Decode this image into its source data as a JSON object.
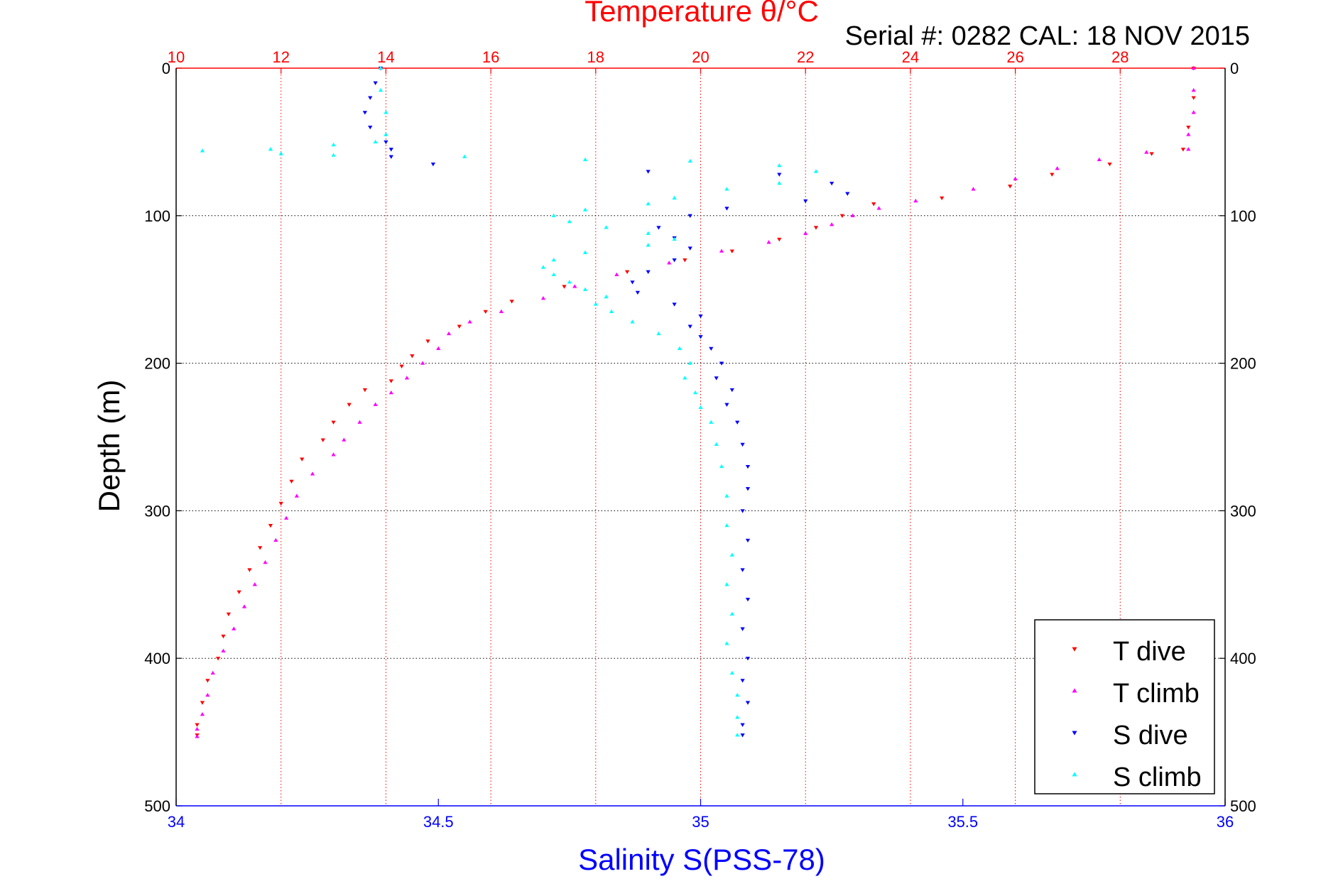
{
  "chart_data": {
    "type": "scatter",
    "title": "Temperature θ/°C",
    "annotation": "Serial #: 0282  CAL: 18 NOV 2015",
    "xlabel": "Salinity S(PSS-78)",
    "ylabel": "Depth (m)",
    "x_temperature_lim": [
      10,
      30
    ],
    "x_salinity_lim": [
      34,
      36
    ],
    "ylim": [
      0,
      500
    ],
    "y_reversed": true,
    "grid": true,
    "legend_placement": "bottom-right",
    "temperature_ticks": [
      "10",
      "12",
      "14",
      "16",
      "18",
      "20",
      "22",
      "24",
      "26",
      "28"
    ],
    "salinity_ticks": [
      "34",
      "34.5",
      "35",
      "35.5",
      "36"
    ],
    "depth_ticks": [
      "0",
      "100",
      "200",
      "300",
      "400",
      "500"
    ],
    "series": [
      {
        "name": "T dive",
        "axis": "temperature",
        "color": "#ff0000",
        "marker": "triangle-down",
        "points": [
          [
            29.4,
            0
          ],
          [
            29.4,
            20
          ],
          [
            29.3,
            40
          ],
          [
            29.2,
            55
          ],
          [
            28.6,
            58
          ],
          [
            27.8,
            65
          ],
          [
            26.7,
            72
          ],
          [
            25.9,
            80
          ],
          [
            24.6,
            88
          ],
          [
            23.3,
            92
          ],
          [
            22.7,
            100
          ],
          [
            22.2,
            108
          ],
          [
            21.5,
            116
          ],
          [
            20.6,
            124
          ],
          [
            19.7,
            130
          ],
          [
            18.6,
            138
          ],
          [
            17.4,
            148
          ],
          [
            16.4,
            158
          ],
          [
            15.9,
            165
          ],
          [
            15.4,
            175
          ],
          [
            14.8,
            185
          ],
          [
            14.5,
            195
          ],
          [
            14.3,
            202
          ],
          [
            14.1,
            212
          ],
          [
            13.6,
            218
          ],
          [
            13.3,
            228
          ],
          [
            13.0,
            240
          ],
          [
            12.8,
            252
          ],
          [
            12.4,
            265
          ],
          [
            12.2,
            280
          ],
          [
            12.0,
            295
          ],
          [
            11.8,
            310
          ],
          [
            11.6,
            325
          ],
          [
            11.4,
            340
          ],
          [
            11.2,
            355
          ],
          [
            11.0,
            370
          ],
          [
            10.9,
            385
          ],
          [
            10.8,
            400
          ],
          [
            10.6,
            415
          ],
          [
            10.5,
            430
          ],
          [
            10.4,
            445
          ],
          [
            10.4,
            452
          ]
        ]
      },
      {
        "name": "T climb",
        "axis": "temperature",
        "color": "#ff00ff",
        "marker": "triangle-up",
        "points": [
          [
            29.4,
            0
          ],
          [
            29.4,
            15
          ],
          [
            29.4,
            30
          ],
          [
            29.3,
            45
          ],
          [
            29.3,
            55
          ],
          [
            28.5,
            57
          ],
          [
            27.6,
            62
          ],
          [
            26.8,
            68
          ],
          [
            26.0,
            75
          ],
          [
            25.2,
            82
          ],
          [
            24.1,
            90
          ],
          [
            23.4,
            95
          ],
          [
            22.9,
            100
          ],
          [
            22.5,
            106
          ],
          [
            22.0,
            112
          ],
          [
            21.3,
            118
          ],
          [
            20.4,
            124
          ],
          [
            19.4,
            132
          ],
          [
            18.4,
            140
          ],
          [
            17.6,
            148
          ],
          [
            17.0,
            156
          ],
          [
            16.2,
            165
          ],
          [
            15.6,
            172
          ],
          [
            15.2,
            180
          ],
          [
            15.0,
            190
          ],
          [
            14.7,
            200
          ],
          [
            14.4,
            210
          ],
          [
            14.1,
            220
          ],
          [
            13.8,
            228
          ],
          [
            13.5,
            240
          ],
          [
            13.2,
            252
          ],
          [
            13.0,
            262
          ],
          [
            12.6,
            275
          ],
          [
            12.3,
            290
          ],
          [
            12.1,
            305
          ],
          [
            11.9,
            320
          ],
          [
            11.7,
            335
          ],
          [
            11.5,
            350
          ],
          [
            11.3,
            365
          ],
          [
            11.1,
            380
          ],
          [
            10.9,
            395
          ],
          [
            10.7,
            410
          ],
          [
            10.6,
            425
          ],
          [
            10.5,
            438
          ],
          [
            10.4,
            448
          ],
          [
            10.4,
            453
          ]
        ]
      },
      {
        "name": "S dive",
        "axis": "salinity",
        "color": "#0000ff",
        "marker": "triangle-down",
        "points": [
          [
            34.39,
            0
          ],
          [
            34.38,
            10
          ],
          [
            34.37,
            20
          ],
          [
            34.36,
            30
          ],
          [
            34.37,
            40
          ],
          [
            34.4,
            50
          ],
          [
            34.41,
            55
          ],
          [
            34.41,
            60
          ],
          [
            34.49,
            65
          ],
          [
            34.9,
            70
          ],
          [
            35.15,
            72
          ],
          [
            35.25,
            78
          ],
          [
            35.28,
            85
          ],
          [
            35.2,
            90
          ],
          [
            35.05,
            95
          ],
          [
            34.98,
            100
          ],
          [
            34.92,
            108
          ],
          [
            34.95,
            115
          ],
          [
            34.98,
            122
          ],
          [
            34.95,
            130
          ],
          [
            34.9,
            138
          ],
          [
            34.87,
            145
          ],
          [
            34.88,
            152
          ],
          [
            34.95,
            160
          ],
          [
            35.0,
            168
          ],
          [
            34.98,
            175
          ],
          [
            35.0,
            182
          ],
          [
            35.02,
            190
          ],
          [
            35.04,
            200
          ],
          [
            35.03,
            210
          ],
          [
            35.06,
            218
          ],
          [
            35.05,
            228
          ],
          [
            35.07,
            240
          ],
          [
            35.08,
            255
          ],
          [
            35.09,
            270
          ],
          [
            35.09,
            285
          ],
          [
            35.08,
            300
          ],
          [
            35.09,
            320
          ],
          [
            35.08,
            340
          ],
          [
            35.09,
            360
          ],
          [
            35.08,
            380
          ],
          [
            35.09,
            400
          ],
          [
            35.08,
            415
          ],
          [
            35.09,
            430
          ],
          [
            35.08,
            445
          ],
          [
            35.08,
            452
          ]
        ]
      },
      {
        "name": "S climb",
        "axis": "salinity",
        "color": "#00ffff",
        "marker": "triangle-up",
        "points": [
          [
            34.39,
            0
          ],
          [
            34.39,
            15
          ],
          [
            34.4,
            30
          ],
          [
            34.4,
            45
          ],
          [
            34.38,
            50
          ],
          [
            34.3,
            52
          ],
          [
            34.18,
            55
          ],
          [
            34.05,
            56
          ],
          [
            34.2,
            58
          ],
          [
            34.3,
            59
          ],
          [
            34.55,
            60
          ],
          [
            34.78,
            62
          ],
          [
            34.98,
            63
          ],
          [
            35.15,
            66
          ],
          [
            35.22,
            70
          ],
          [
            35.15,
            78
          ],
          [
            35.05,
            82
          ],
          [
            34.95,
            88
          ],
          [
            34.9,
            92
          ],
          [
            34.78,
            96
          ],
          [
            34.72,
            100
          ],
          [
            34.75,
            104
          ],
          [
            34.82,
            108
          ],
          [
            34.9,
            112
          ],
          [
            34.95,
            116
          ],
          [
            34.9,
            120
          ],
          [
            34.78,
            125
          ],
          [
            34.72,
            130
          ],
          [
            34.7,
            135
          ],
          [
            34.72,
            140
          ],
          [
            34.75,
            145
          ],
          [
            34.78,
            150
          ],
          [
            34.82,
            155
          ],
          [
            34.8,
            160
          ],
          [
            34.83,
            165
          ],
          [
            34.87,
            172
          ],
          [
            34.92,
            180
          ],
          [
            34.96,
            190
          ],
          [
            34.98,
            200
          ],
          [
            34.97,
            210
          ],
          [
            34.99,
            220
          ],
          [
            35.0,
            230
          ],
          [
            35.02,
            240
          ],
          [
            35.03,
            255
          ],
          [
            35.04,
            270
          ],
          [
            35.05,
            290
          ],
          [
            35.05,
            310
          ],
          [
            35.06,
            330
          ],
          [
            35.05,
            350
          ],
          [
            35.06,
            370
          ],
          [
            35.05,
            390
          ],
          [
            35.06,
            410
          ],
          [
            35.07,
            425
          ],
          [
            35.07,
            440
          ],
          [
            35.07,
            452
          ]
        ]
      }
    ]
  }
}
